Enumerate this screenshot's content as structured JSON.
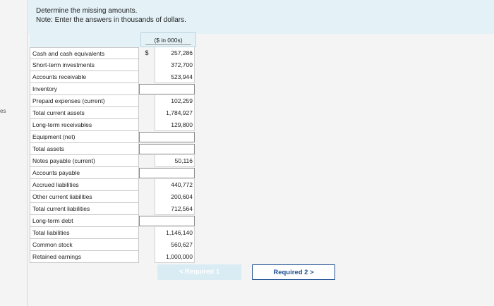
{
  "side_label": "es",
  "instructions": {
    "line1": "Determine the missing amounts.",
    "line2": "Note: Enter the answers in thousands of dollars."
  },
  "table": {
    "units_header": "($ in 000s)",
    "currency_symbol": "$",
    "rows": [
      {
        "label": "Cash and cash equivalents",
        "value": "257,286"
      },
      {
        "label": "Short-term investments",
        "value": "372,700"
      },
      {
        "label": "Accounts receivable",
        "value": "523,944"
      },
      {
        "label": "Inventory",
        "value": ""
      },
      {
        "label": "Prepaid expenses (current)",
        "value": "102,259"
      },
      {
        "label": "Total current assets",
        "value": "1,784,927"
      },
      {
        "label": "Long-term receivables",
        "value": "129,800"
      },
      {
        "label": "Equipment (net)",
        "value": ""
      },
      {
        "label": "Total assets",
        "value": ""
      },
      {
        "label": "Notes payable (current)",
        "value": "50,116"
      },
      {
        "label": "Accounts payable",
        "value": ""
      },
      {
        "label": "Accrued liabilities",
        "value": "440,772"
      },
      {
        "label": "Other current liabilities",
        "value": "200,604"
      },
      {
        "label": "Total current liabilities",
        "value": "712,564"
      },
      {
        "label": "Long-term debt",
        "value": ""
      },
      {
        "label": "Total liabilities",
        "value": "1,146,140"
      },
      {
        "label": "Common stock",
        "value": "560,627"
      },
      {
        "label": "Retained earnings",
        "value": "1,000,000"
      }
    ]
  },
  "nav": {
    "prev_label": "Required 1",
    "next_label": "Required 2",
    "prev_chevron": "<",
    "next_chevron": ">"
  }
}
